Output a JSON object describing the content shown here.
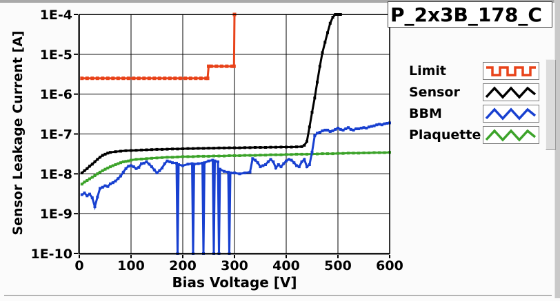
{
  "title_box": "P_2x3B_178_C",
  "colors": {
    "limit": "#e8431a",
    "sensor": "#000000",
    "bbm": "#1840d0",
    "plaquette": "#3ca32a",
    "grid": "#000000",
    "plot_bg": "#ffffff"
  },
  "legend": {
    "items": [
      {
        "label": "Limit",
        "series": "limit"
      },
      {
        "label": "Sensor",
        "series": "sensor"
      },
      {
        "label": "BBM",
        "series": "bbm"
      },
      {
        "label": "Plaquette",
        "series": "plaquette"
      }
    ]
  },
  "chart_data": {
    "type": "line",
    "title": "P_2x3B_178_C",
    "xlabel": "Bias Voltage [V]",
    "ylabel": "Sensor Leakage Current [A]",
    "xlim": [
      0,
      600
    ],
    "ylim": [
      1e-10,
      0.0001
    ],
    "y_log": true,
    "grid": true,
    "legend_position": "right",
    "x_ticks": [
      0,
      100,
      200,
      300,
      400,
      500,
      600
    ],
    "x_tick_labels": [
      "0",
      "100",
      "200",
      "300",
      "400",
      "500",
      "600"
    ],
    "y_ticks": [
      0.0001,
      1e-05,
      1e-06,
      1e-07,
      1e-08,
      1e-09,
      1e-10
    ],
    "y_tick_labels": [
      "1E-4",
      "1E-5",
      "1E-6",
      "1E-7",
      "1E-8",
      "1E-9",
      "1E-10"
    ],
    "series": [
      {
        "name": "Plaquette",
        "color_key": "plaquette",
        "marker": 4,
        "points": [
          [
            5,
            5.5e-09
          ],
          [
            10,
            6.2e-09
          ],
          [
            15,
            6.8e-09
          ],
          [
            20,
            7.5e-09
          ],
          [
            25,
            8.2e-09
          ],
          [
            30,
            9e-09
          ],
          [
            35,
            1e-08
          ],
          [
            40,
            1.1e-08
          ],
          [
            45,
            1.2e-08
          ],
          [
            50,
            1.3e-08
          ],
          [
            55,
            1.4e-08
          ],
          [
            60,
            1.5e-08
          ],
          [
            65,
            1.6e-08
          ],
          [
            70,
            1.7e-08
          ],
          [
            75,
            1.8e-08
          ],
          [
            80,
            1.9e-08
          ],
          [
            85,
            2e-08
          ],
          [
            90,
            2.05e-08
          ],
          [
            95,
            2.1e-08
          ],
          [
            100,
            2.2e-08
          ],
          [
            110,
            2.3e-08
          ],
          [
            120,
            2.35e-08
          ],
          [
            130,
            2.4e-08
          ],
          [
            140,
            2.45e-08
          ],
          [
            150,
            2.5e-08
          ],
          [
            160,
            2.55e-08
          ],
          [
            170,
            2.6e-08
          ],
          [
            180,
            2.6e-08
          ],
          [
            190,
            2.65e-08
          ],
          [
            200,
            2.7e-08
          ],
          [
            210,
            2.7e-08
          ],
          [
            220,
            2.7e-08
          ],
          [
            230,
            2.75e-08
          ],
          [
            240,
            2.75e-08
          ],
          [
            250,
            2.75e-08
          ],
          [
            260,
            2.8e-08
          ],
          [
            270,
            2.8e-08
          ],
          [
            280,
            2.8e-08
          ],
          [
            290,
            2.85e-08
          ],
          [
            300,
            2.85e-08
          ],
          [
            310,
            2.85e-08
          ],
          [
            320,
            2.9e-08
          ],
          [
            330,
            2.9e-08
          ],
          [
            340,
            2.9e-08
          ],
          [
            350,
            2.95e-08
          ],
          [
            360,
            2.95e-08
          ],
          [
            370,
            3e-08
          ],
          [
            380,
            3e-08
          ],
          [
            390,
            3e-08
          ],
          [
            400,
            3.05e-08
          ],
          [
            410,
            3.05e-08
          ],
          [
            420,
            3.1e-08
          ],
          [
            430,
            3.1e-08
          ],
          [
            440,
            3.1e-08
          ],
          [
            450,
            3.15e-08
          ],
          [
            460,
            3.15e-08
          ],
          [
            470,
            3.2e-08
          ],
          [
            480,
            3.2e-08
          ],
          [
            490,
            3.2e-08
          ],
          [
            500,
            3.25e-08
          ],
          [
            510,
            3.25e-08
          ],
          [
            520,
            3.3e-08
          ],
          [
            530,
            3.3e-08
          ],
          [
            540,
            3.3e-08
          ],
          [
            550,
            3.35e-08
          ],
          [
            560,
            3.35e-08
          ],
          [
            570,
            3.4e-08
          ],
          [
            580,
            3.4e-08
          ],
          [
            590,
            3.4e-08
          ],
          [
            600,
            3.45e-08
          ]
        ]
      },
      {
        "name": "BBM",
        "color_key": "bbm",
        "marker": 4,
        "points": [
          [
            5,
            3e-09
          ],
          [
            10,
            3.3e-09
          ],
          [
            15,
            2.8e-09
          ],
          [
            20,
            3.1e-09
          ],
          [
            25,
            2.5e-09
          ],
          [
            30,
            1.5e-09
          ],
          [
            35,
            2.6e-09
          ],
          [
            40,
            4.3e-09
          ],
          [
            45,
            4.6e-09
          ],
          [
            50,
            5e-09
          ],
          [
            55,
            4.8e-09
          ],
          [
            60,
            5.6e-09
          ],
          [
            65,
            6e-09
          ],
          [
            70,
            6.6e-09
          ],
          [
            75,
            7.6e-09
          ],
          [
            80,
            8.8e-09
          ],
          [
            85,
            1.1e-08
          ],
          [
            90,
            1.35e-08
          ],
          [
            95,
            1.55e-08
          ],
          [
            100,
            1.6e-08
          ],
          [
            105,
            1.5e-08
          ],
          [
            110,
            1.35e-08
          ],
          [
            115,
            1.45e-08
          ],
          [
            120,
            1.8e-08
          ],
          [
            125,
            1.85e-08
          ],
          [
            130,
            2e-08
          ],
          [
            135,
            1.75e-08
          ],
          [
            140,
            1.5e-08
          ],
          [
            145,
            1.25e-08
          ],
          [
            150,
            1.05e-08
          ],
          [
            155,
            1.2e-08
          ],
          [
            160,
            1.4e-08
          ],
          [
            165,
            1.8e-08
          ],
          [
            170,
            2.1e-08
          ],
          [
            175,
            2e-08
          ],
          [
            180,
            1.9e-08
          ],
          [
            188,
            1.85e-08
          ],
          [
            190,
            5e-11
          ],
          [
            192,
            1.7e-08
          ],
          [
            200,
            1.6e-08
          ],
          [
            210,
            1.75e-08
          ],
          [
            218,
            1.8e-08
          ],
          [
            220,
            5e-11
          ],
          [
            222,
            1.75e-08
          ],
          [
            230,
            1.8e-08
          ],
          [
            238,
            1.85e-08
          ],
          [
            240,
            5e-11
          ],
          [
            242,
            1.9e-08
          ],
          [
            250,
            2.1e-08
          ],
          [
            258,
            2.2e-08
          ],
          [
            260,
            5e-11
          ],
          [
            262,
            2.1e-08
          ],
          [
            268,
            2e-08
          ],
          [
            270,
            5e-11
          ],
          [
            272,
            1.3e-08
          ],
          [
            280,
            1.15e-08
          ],
          [
            288,
            1.1e-08
          ],
          [
            290,
            5e-11
          ],
          [
            292,
            1.05e-08
          ],
          [
            300,
            1.05e-08
          ],
          [
            310,
            1e-08
          ],
          [
            320,
            1.05e-08
          ],
          [
            330,
            1.1e-08
          ],
          [
            335,
            2.4e-08
          ],
          [
            340,
            2.2e-08
          ],
          [
            345,
            1.9e-08
          ],
          [
            350,
            1.5e-08
          ],
          [
            355,
            1.6e-08
          ],
          [
            360,
            1.7e-08
          ],
          [
            365,
            2e-08
          ],
          [
            370,
            2.3e-08
          ],
          [
            375,
            2e-08
          ],
          [
            380,
            1.4e-08
          ],
          [
            385,
            1.7e-08
          ],
          [
            390,
            1.5e-08
          ],
          [
            395,
            1.8e-08
          ],
          [
            400,
            2.1e-08
          ],
          [
            405,
            2.3e-08
          ],
          [
            410,
            2.2e-08
          ],
          [
            415,
            1.9e-08
          ],
          [
            420,
            1.6e-08
          ],
          [
            425,
            1.5e-08
          ],
          [
            430,
            2e-08
          ],
          [
            435,
            2.3e-08
          ],
          [
            440,
            1.5e-08
          ],
          [
            445,
            1.7e-08
          ],
          [
            450,
            3.5e-08
          ],
          [
            455,
            9e-08
          ],
          [
            460,
            1.05e-07
          ],
          [
            465,
            1.1e-07
          ],
          [
            470,
            1.2e-07
          ],
          [
            475,
            1.25e-07
          ],
          [
            480,
            1.25e-07
          ],
          [
            485,
            1.15e-07
          ],
          [
            490,
            1.2e-07
          ],
          [
            495,
            1.3e-07
          ],
          [
            500,
            1.4e-07
          ],
          [
            505,
            1.3e-07
          ],
          [
            510,
            1.25e-07
          ],
          [
            515,
            1.35e-07
          ],
          [
            520,
            1.45e-07
          ],
          [
            525,
            1.3e-07
          ],
          [
            530,
            1.25e-07
          ],
          [
            535,
            1.35e-07
          ],
          [
            540,
            1.35e-07
          ],
          [
            545,
            1.4e-07
          ],
          [
            550,
            1.45e-07
          ],
          [
            555,
            1.4e-07
          ],
          [
            560,
            1.5e-07
          ],
          [
            565,
            1.55e-07
          ],
          [
            570,
            1.6e-07
          ],
          [
            575,
            1.7e-07
          ],
          [
            580,
            1.75e-07
          ],
          [
            585,
            1.7e-07
          ],
          [
            590,
            1.8e-07
          ],
          [
            595,
            1.85e-07
          ],
          [
            600,
            1.9e-07
          ]
        ]
      },
      {
        "name": "Sensor",
        "color_key": "sensor",
        "marker": 4,
        "points": [
          [
            5,
            1.05e-08
          ],
          [
            10,
            1.2e-08
          ],
          [
            15,
            1.35e-08
          ],
          [
            20,
            1.55e-08
          ],
          [
            25,
            1.75e-08
          ],
          [
            30,
            2e-08
          ],
          [
            35,
            2.3e-08
          ],
          [
            40,
            2.6e-08
          ],
          [
            45,
            2.9e-08
          ],
          [
            50,
            3.1e-08
          ],
          [
            55,
            3.3e-08
          ],
          [
            60,
            3.45e-08
          ],
          [
            70,
            3.6e-08
          ],
          [
            80,
            3.7e-08
          ],
          [
            90,
            3.8e-08
          ],
          [
            100,
            3.85e-08
          ],
          [
            110,
            3.9e-08
          ],
          [
            120,
            3.95e-08
          ],
          [
            130,
            4e-08
          ],
          [
            140,
            4.05e-08
          ],
          [
            150,
            4.1e-08
          ],
          [
            160,
            4.1e-08
          ],
          [
            170,
            4.15e-08
          ],
          [
            180,
            4.2e-08
          ],
          [
            190,
            4.2e-08
          ],
          [
            200,
            4.25e-08
          ],
          [
            210,
            4.3e-08
          ],
          [
            220,
            4.3e-08
          ],
          [
            230,
            4.35e-08
          ],
          [
            240,
            4.35e-08
          ],
          [
            250,
            4.4e-08
          ],
          [
            260,
            4.4e-08
          ],
          [
            270,
            4.45e-08
          ],
          [
            280,
            4.45e-08
          ],
          [
            290,
            4.5e-08
          ],
          [
            300,
            4.5e-08
          ],
          [
            310,
            4.5e-08
          ],
          [
            320,
            4.55e-08
          ],
          [
            330,
            4.55e-08
          ],
          [
            340,
            4.6e-08
          ],
          [
            350,
            4.6e-08
          ],
          [
            360,
            4.6e-08
          ],
          [
            370,
            4.65e-08
          ],
          [
            380,
            4.65e-08
          ],
          [
            390,
            4.7e-08
          ],
          [
            400,
            4.7e-08
          ],
          [
            410,
            4.7e-08
          ],
          [
            420,
            4.75e-08
          ],
          [
            430,
            4.8e-08
          ],
          [
            435,
            5.2e-08
          ],
          [
            440,
            6.5e-08
          ],
          [
            445,
            1.5e-07
          ],
          [
            450,
            3.5e-07
          ],
          [
            455,
            8e-07
          ],
          [
            460,
            2e-06
          ],
          [
            465,
            5e-06
          ],
          [
            470,
            1.1e-05
          ],
          [
            475,
            2e-05
          ],
          [
            480,
            3.5e-05
          ],
          [
            485,
            6e-05
          ],
          [
            490,
            8.5e-05
          ],
          [
            495,
            0.0001
          ],
          [
            500,
            0.000115
          ],
          [
            505,
            0.00013
          ]
        ]
      },
      {
        "name": "Limit",
        "color_key": "limit",
        "marker": 5,
        "points": [
          [
            5,
            2.5e-06
          ],
          [
            15,
            2.5e-06
          ],
          [
            25,
            2.5e-06
          ],
          [
            35,
            2.5e-06
          ],
          [
            45,
            2.5e-06
          ],
          [
            55,
            2.5e-06
          ],
          [
            65,
            2.5e-06
          ],
          [
            75,
            2.5e-06
          ],
          [
            85,
            2.5e-06
          ],
          [
            95,
            2.5e-06
          ],
          [
            105,
            2.5e-06
          ],
          [
            115,
            2.5e-06
          ],
          [
            125,
            2.5e-06
          ],
          [
            135,
            2.5e-06
          ],
          [
            145,
            2.5e-06
          ],
          [
            155,
            2.5e-06
          ],
          [
            165,
            2.5e-06
          ],
          [
            175,
            2.5e-06
          ],
          [
            185,
            2.5e-06
          ],
          [
            195,
            2.5e-06
          ],
          [
            205,
            2.5e-06
          ],
          [
            215,
            2.5e-06
          ],
          [
            225,
            2.5e-06
          ],
          [
            235,
            2.5e-06
          ],
          [
            245,
            2.5e-06
          ],
          [
            248,
            2.5e-06
          ],
          [
            250,
            5e-06
          ],
          [
            255,
            5e-06
          ],
          [
            265,
            5e-06
          ],
          [
            275,
            5e-06
          ],
          [
            285,
            5e-06
          ],
          [
            295,
            5e-06
          ],
          [
            299,
            5e-06
          ],
          [
            300,
            0.00013
          ]
        ]
      }
    ]
  }
}
